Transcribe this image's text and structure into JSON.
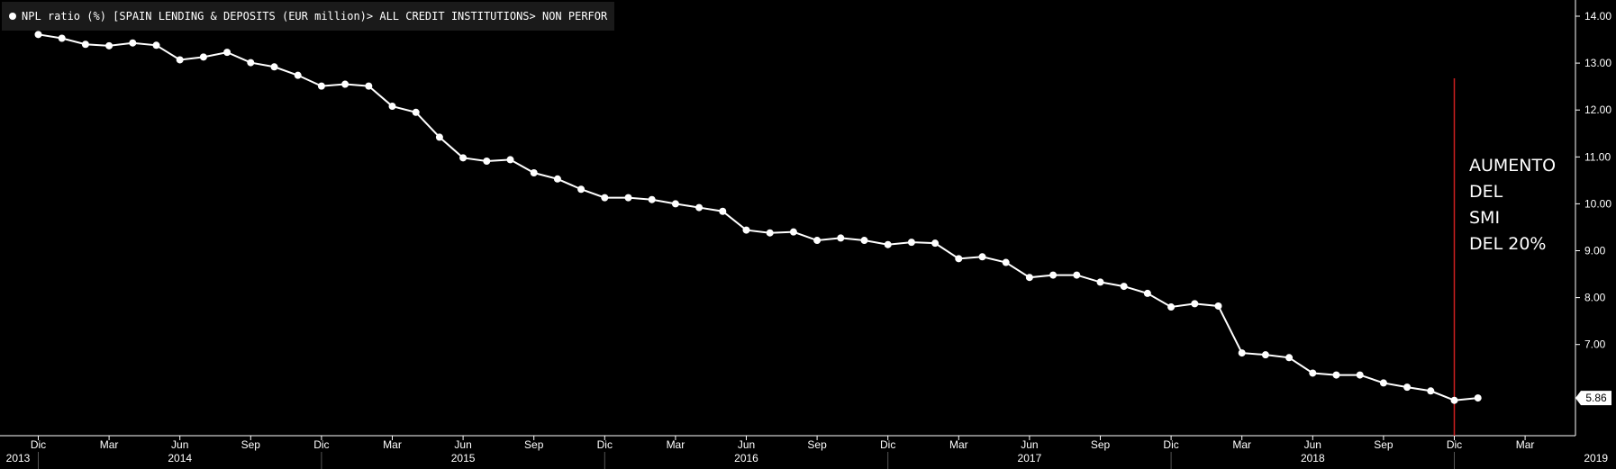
{
  "legend": {
    "label": "NPL ratio (%) [SPAIN LENDING & DEPOSITS (EUR million)> ALL CREDIT INSTITUTIONS> NON PERFOR"
  },
  "annotation": {
    "text": "AUMENTO\nDEL\nSMI\nDEL 20%"
  },
  "last_value_label": "5.86",
  "colors": {
    "background": "#000000",
    "line": "#ffffff",
    "marker_line": "#cc1f1f",
    "axis": "#ffffff"
  },
  "chart_data": {
    "type": "line",
    "title": "",
    "xlabel": "",
    "ylabel": "",
    "ylim": [
      5.0,
      14.2
    ],
    "y_ticks": [
      "14.00",
      "13.00",
      "12.00",
      "11.00",
      "10.00",
      "9.00",
      "8.00",
      "7.00"
    ],
    "x_month_ticks": [
      "Dic",
      "Mar",
      "Jun",
      "Sep",
      "Dic",
      "Mar",
      "Jun",
      "Sep",
      "Dic",
      "Mar",
      "Jun",
      "Sep",
      "Dic",
      "Mar",
      "Jun",
      "Sep",
      "Dic",
      "Mar",
      "Jun",
      "Sep",
      "Dic",
      "Mar"
    ],
    "x_year_labels": [
      "2013",
      "2014",
      "2015",
      "2016",
      "2017",
      "2018",
      "2019"
    ],
    "start_period": "2013-12",
    "end_period": "2019-03",
    "marker_period": "2018-12",
    "series": [
      {
        "name": "NPL ratio (%)",
        "x": [
          "2013-12",
          "2014-01",
          "2014-02",
          "2014-03",
          "2014-04",
          "2014-05",
          "2014-06",
          "2014-07",
          "2014-08",
          "2014-09",
          "2014-10",
          "2014-11",
          "2014-12",
          "2015-01",
          "2015-02",
          "2015-03",
          "2015-04",
          "2015-05",
          "2015-06",
          "2015-07",
          "2015-08",
          "2015-09",
          "2015-10",
          "2015-11",
          "2015-12",
          "2016-01",
          "2016-02",
          "2016-03",
          "2016-04",
          "2016-05",
          "2016-06",
          "2016-07",
          "2016-08",
          "2016-09",
          "2016-10",
          "2016-11",
          "2016-12",
          "2017-01",
          "2017-02",
          "2017-03",
          "2017-04",
          "2017-05",
          "2017-06",
          "2017-07",
          "2017-08",
          "2017-09",
          "2017-10",
          "2017-11",
          "2017-12",
          "2018-01",
          "2018-02",
          "2018-03",
          "2018-04",
          "2018-05",
          "2018-06",
          "2018-07",
          "2018-08",
          "2018-09",
          "2018-10",
          "2018-11",
          "2018-12",
          "2019-01"
        ],
        "values": [
          13.61,
          13.53,
          13.4,
          13.37,
          13.43,
          13.38,
          13.07,
          13.13,
          13.23,
          13.01,
          12.92,
          12.74,
          12.51,
          12.55,
          12.51,
          12.08,
          11.95,
          11.42,
          10.98,
          10.91,
          10.94,
          10.66,
          10.53,
          10.31,
          10.13,
          10.13,
          10.09,
          10.0,
          9.92,
          9.84,
          9.44,
          9.38,
          9.4,
          9.22,
          9.27,
          9.22,
          9.13,
          9.18,
          9.16,
          8.83,
          8.87,
          8.75,
          8.43,
          8.48,
          8.48,
          8.33,
          8.24,
          8.09,
          7.8,
          7.87,
          7.82,
          6.82,
          6.78,
          6.72,
          6.39,
          6.35,
          6.35,
          6.18,
          6.09,
          6.01,
          5.81,
          5.86
        ]
      }
    ]
  }
}
